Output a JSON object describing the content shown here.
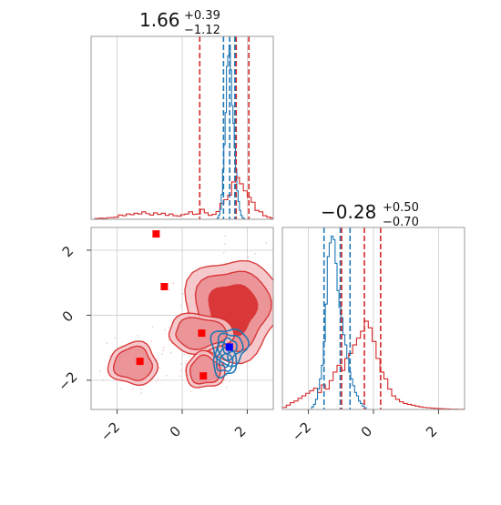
{
  "colors": {
    "red": "#d62728",
    "blue": "#1f77b4",
    "marker_blue": "#0000ff",
    "marker_red": "#ff0000",
    "grid": "#cccccc",
    "frame": "#999999"
  },
  "chart_data": [
    {
      "panel": "top-left",
      "type": "histogram",
      "title_value": "1.66",
      "title_plus": "+0.39",
      "title_minus": "−1.12",
      "xlim": [
        -2.8,
        2.8
      ],
      "grid": true,
      "series": [
        {
          "color": "#d62728",
          "bins": [
            -2.8,
            -2.68,
            -2.56,
            -2.44,
            -2.32,
            -2.2,
            -2.08,
            -1.96,
            -1.84,
            -1.72,
            -1.6,
            -1.48,
            -1.36,
            -1.24,
            -1.12,
            -1.0,
            -0.88,
            -0.76,
            -0.64,
            -0.52,
            -0.4,
            -0.28,
            -0.16,
            -0.04,
            0.08,
            0.2,
            0.32,
            0.44,
            0.56,
            0.68,
            0.8,
            0.92,
            1.04,
            1.16,
            1.28,
            1.4,
            1.52,
            1.64,
            1.76,
            1.88,
            2.0,
            2.12,
            2.24,
            2.36,
            2.48,
            2.6,
            2.72,
            2.8
          ],
          "counts": [
            0,
            0.4,
            0.6,
            0.5,
            0.9,
            1.0,
            1.2,
            2.4,
            2.0,
            3.0,
            2.6,
            3.4,
            3.0,
            4.2,
            3.2,
            2.4,
            3.6,
            2.8,
            3.4,
            2.2,
            3.0,
            2.0,
            1.8,
            2.6,
            3.0,
            4.2,
            2.8,
            3.0,
            5.6,
            3.6,
            2.2,
            2.8,
            4.4,
            9.0,
            11.0,
            13.6,
            21.0,
            23.5,
            20.0,
            16.0,
            12.4,
            9.6,
            5.0,
            4.2,
            2.0,
            1.2,
            0.6
          ]
        },
        {
          "color": "#1f77b4",
          "bins": [
            1.08,
            1.12,
            1.16,
            1.2,
            1.24,
            1.28,
            1.32,
            1.36,
            1.4,
            1.44,
            1.48,
            1.52,
            1.56,
            1.6,
            1.64,
            1.68,
            1.72,
            1.76,
            1.8,
            1.84,
            1.88,
            1.92
          ],
          "counts": [
            0.8,
            2.5,
            5.6,
            14.0,
            28.0,
            42.0,
            60.0,
            86.0,
            92.0,
            98.0,
            84.0,
            64.0,
            54.0,
            40.0,
            28.0,
            16.0,
            10.0,
            5.0,
            2.2,
            1.0,
            0.4
          ]
        }
      ],
      "vlines": [
        {
          "x": 0.54,
          "color": "#d62728"
        },
        {
          "x": 1.66,
          "color": "#d62728"
        },
        {
          "x": 2.05,
          "color": "#d62728"
        },
        {
          "x": 1.27,
          "color": "#1f77b4"
        },
        {
          "x": 1.46,
          "color": "#1f77b4"
        },
        {
          "x": 1.62,
          "color": "#1f77b4"
        }
      ]
    },
    {
      "panel": "bottom-left",
      "type": "scatter",
      "xlim": [
        -2.8,
        2.8
      ],
      "ylim": [
        -2.9,
        2.7
      ],
      "xticks": [
        -2,
        0,
        2
      ],
      "yticks": [
        -2,
        0,
        2
      ],
      "xticklabels": [
        "−2",
        "0",
        "2"
      ],
      "yticklabels": [
        "−2",
        "0",
        "2"
      ],
      "grid": true,
      "red_points": [
        {
          "x": -0.8,
          "y": 2.5
        },
        {
          "x": -0.55,
          "y": 0.88
        },
        {
          "x": 0.6,
          "y": -0.55
        },
        {
          "x": -1.3,
          "y": -1.42
        },
        {
          "x": 0.65,
          "y": -1.87
        }
      ],
      "blue_points": [
        {
          "x": 1.45,
          "y": -0.98
        }
      ],
      "red_regions": [
        {
          "cx": 1.55,
          "cy": 0.2,
          "rx": 1.45,
          "ry": 1.55
        },
        {
          "cx": 0.55,
          "cy": -0.55,
          "rx": 1.0,
          "ry": 0.6
        },
        {
          "cx": 0.7,
          "cy": -1.7,
          "rx": 0.6,
          "ry": 0.55
        },
        {
          "cx": -1.5,
          "cy": -1.5,
          "rx": 0.75,
          "ry": 0.65
        }
      ],
      "blue_regions": [
        {
          "cx": 1.45,
          "cy": -0.95,
          "rx": 0.55,
          "ry": 0.55
        },
        {
          "cx": 1.3,
          "cy": -1.4,
          "rx": 0.35,
          "ry": 0.5
        }
      ]
    },
    {
      "panel": "bottom-right",
      "type": "histogram",
      "title_value": "−0.28",
      "title_plus": "+0.50",
      "title_minus": "−0.70",
      "xlim": [
        -2.8,
        2.8
      ],
      "xticks": [
        -2,
        0,
        2
      ],
      "xticklabels": [
        "−2",
        "0",
        "2"
      ],
      "grid": true,
      "series": [
        {
          "color": "#d62728",
          "bins": [
            -2.8,
            -2.68,
            -2.56,
            -2.44,
            -2.32,
            -2.2,
            -2.08,
            -1.96,
            -1.84,
            -1.72,
            -1.6,
            -1.48,
            -1.36,
            -1.24,
            -1.12,
            -1.0,
            -0.88,
            -0.76,
            -0.64,
            -0.52,
            -0.4,
            -0.28,
            -0.16,
            -0.04,
            0.08,
            0.2,
            0.32,
            0.44,
            0.56,
            0.68,
            0.8,
            0.92,
            1.04,
            1.16,
            1.28,
            1.4,
            1.52,
            1.64,
            1.76,
            1.88,
            2.0,
            2.12,
            2.24,
            2.36,
            2.48,
            2.6,
            2.72,
            2.8
          ],
          "counts": [
            1.2,
            2.5,
            4.0,
            5.0,
            6.5,
            8.0,
            9.5,
            11.0,
            12.5,
            10.0,
            14.5,
            12.0,
            17.0,
            22.0,
            26.0,
            23.0,
            30.0,
            33.0,
            38.0,
            42.0,
            46.0,
            52.0,
            48.0,
            40.0,
            30.0,
            22.0,
            18.0,
            12.0,
            8.0,
            6.0,
            4.5,
            3.5,
            3.0,
            2.5,
            2.0,
            1.5,
            1.2,
            1.0,
            0.8,
            0.6,
            0.5,
            0.4,
            0.3,
            0.2,
            0.2,
            0.1,
            0.1
          ]
        },
        {
          "color": "#1f77b4",
          "bins": [
            -1.9,
            -1.84,
            -1.78,
            -1.72,
            -1.66,
            -1.6,
            -1.54,
            -1.48,
            -1.42,
            -1.36,
            -1.3,
            -1.24,
            -1.18,
            -1.12,
            -1.06,
            -1.0,
            -0.94,
            -0.88,
            -0.82,
            -0.76,
            -0.7,
            -0.64,
            -0.58,
            -0.52,
            -0.46,
            -0.4,
            -0.34,
            -0.28,
            -0.22
          ],
          "counts": [
            1.5,
            3.0,
            6.0,
            12.0,
            18.0,
            26.0,
            40.0,
            62.0,
            90.0,
            98.0,
            102.0,
            100.0,
            86.0,
            70.0,
            60.0,
            54.0,
            44.0,
            38.0,
            30.0,
            22.0,
            18.0,
            14.0,
            10.0,
            8.0,
            5.0,
            3.5,
            2.0,
            1.0
          ]
        }
      ],
      "vlines": [
        {
          "x": -1.52,
          "color": "#1f77b4"
        },
        {
          "x": -1.02,
          "color": "#1f77b4"
        },
        {
          "x": -0.72,
          "color": "#1f77b4"
        },
        {
          "x": -0.98,
          "color": "#d62728"
        },
        {
          "x": -0.28,
          "color": "#d62728"
        },
        {
          "x": 0.22,
          "color": "#d62728"
        }
      ]
    }
  ]
}
